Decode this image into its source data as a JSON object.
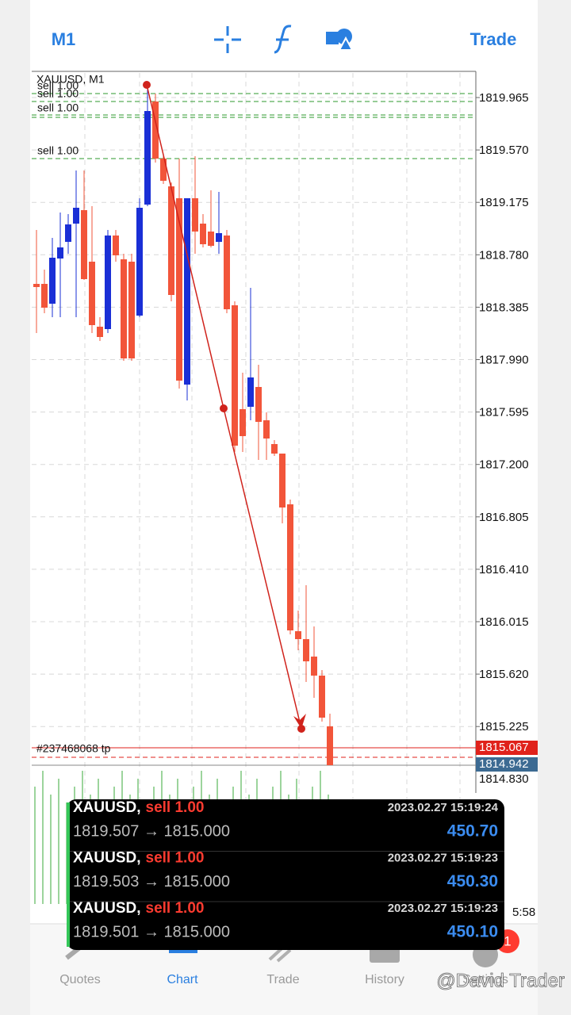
{
  "toolbar": {
    "timeframe": "M1",
    "trade": "Trade"
  },
  "chart": {
    "symbol": "XAUUSD, M1",
    "price_levels": [
      "1819.965",
      "1819.570",
      "1819.175",
      "1818.780",
      "1818.385",
      "1817.990",
      "1817.595",
      "1817.200",
      "1816.805",
      "1816.410",
      "1816.015",
      "1815.620",
      "1815.225"
    ],
    "bottom_level": "1814.830",
    "order_labels": [
      "sell 1.00",
      "sell 1.00",
      "sell 1.00",
      "sell 1.00"
    ],
    "tp_label": "#237468068 tp",
    "bid": "1815.067",
    "ask": "1814.942",
    "time_label": "5:58"
  },
  "notifications": [
    {
      "symbol": "XAUUSD,",
      "side": "sell 1.00",
      "time": "2023.02.27 15:19:24",
      "prices": "1819.507 → 1815.000",
      "profit": "450.70"
    },
    {
      "symbol": "XAUUSD,",
      "side": "sell 1.00",
      "time": "2023.02.27 15:19:23",
      "prices": "1819.503 → 1815.000",
      "profit": "450.30"
    },
    {
      "symbol": "XAUUSD,",
      "side": "sell 1.00",
      "time": "2023.02.27 15:19:23",
      "prices": "1819.501 → 1815.000",
      "profit": "450.10"
    }
  ],
  "tabs": [
    "Quotes",
    "Chart",
    "Trade",
    "History",
    "Settings"
  ],
  "badge": "1",
  "watermark": "@David Trader"
}
